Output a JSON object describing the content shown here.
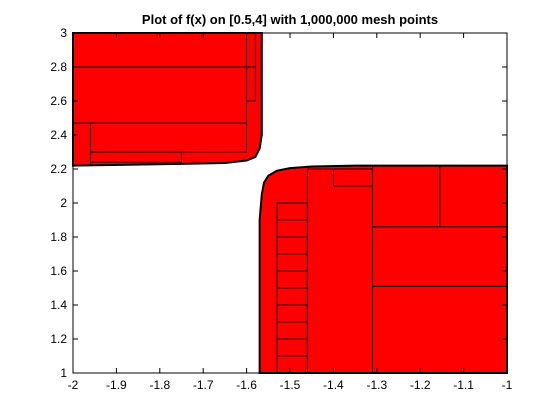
{
  "chart_data": {
    "type": "regions",
    "title": "Plot of f(x) on [0.5,4] with 1,000,000 mesh points",
    "xlim": [
      -2,
      -1
    ],
    "ylim": [
      1,
      3
    ],
    "xticks": [
      -2,
      -1.9,
      -1.8,
      -1.7,
      -1.6,
      -1.5,
      -1.4,
      -1.3,
      -1.2,
      -1.1,
      -1
    ],
    "yticks": [
      1,
      1.2,
      1.4,
      1.6,
      1.8,
      2,
      2.2,
      2.4,
      2.6,
      2.8,
      3
    ],
    "color": "#ff0000",
    "regions": [
      {
        "x": [
          -2,
          -1.565,
          -1.565,
          -1.57,
          -1.58,
          -1.6,
          -1.65,
          -1.75,
          -2
        ],
        "y": [
          3,
          3,
          2.4,
          2.32,
          2.27,
          2.25,
          2.235,
          2.23,
          2.22
        ]
      },
      {
        "x": [
          -1,
          -1.57,
          -1.57,
          -1.565,
          -1.56,
          -1.55,
          -1.53,
          -1.5,
          -1.45,
          -1.35,
          -1
        ],
        "y": [
          1,
          1,
          1.9,
          2.05,
          2.12,
          2.16,
          2.19,
          2.205,
          2.215,
          2.22,
          2.22
        ]
      }
    ],
    "boxes": [
      [
        -2,
        -1.6,
        2.8,
        3
      ],
      [
        -2,
        -1.6,
        2.47,
        2.8
      ],
      [
        -2,
        -1.96,
        2.22,
        2.47
      ],
      [
        -1.96,
        -1.6,
        2.3,
        2.47
      ],
      [
        -1.96,
        -1.75,
        2.24,
        2.3
      ],
      [
        -1.6,
        -1.58,
        2.8,
        3
      ],
      [
        -1.6,
        -1.58,
        2.6,
        2.8
      ],
      [
        -1.31,
        -1,
        1,
        1.51
      ],
      [
        -1.31,
        -1,
        1.51,
        1.86
      ],
      [
        -1.31,
        -1.155,
        1.86,
        2.22
      ],
      [
        -1.155,
        -1,
        1.86,
        2.22
      ],
      [
        -1.46,
        -1.31,
        1,
        2.2
      ],
      [
        -1.53,
        -1.46,
        1,
        2.0
      ],
      [
        -1.53,
        -1.46,
        1.1,
        1.2
      ],
      [
        -1.53,
        -1.46,
        1.3,
        1.4
      ],
      [
        -1.53,
        -1.46,
        1.5,
        1.6
      ],
      [
        -1.53,
        -1.46,
        1.7,
        1.8
      ],
      [
        -1.53,
        -1.46,
        1.9,
        2.0
      ],
      [
        -1.4,
        -1.31,
        2.1,
        2.2
      ]
    ]
  }
}
